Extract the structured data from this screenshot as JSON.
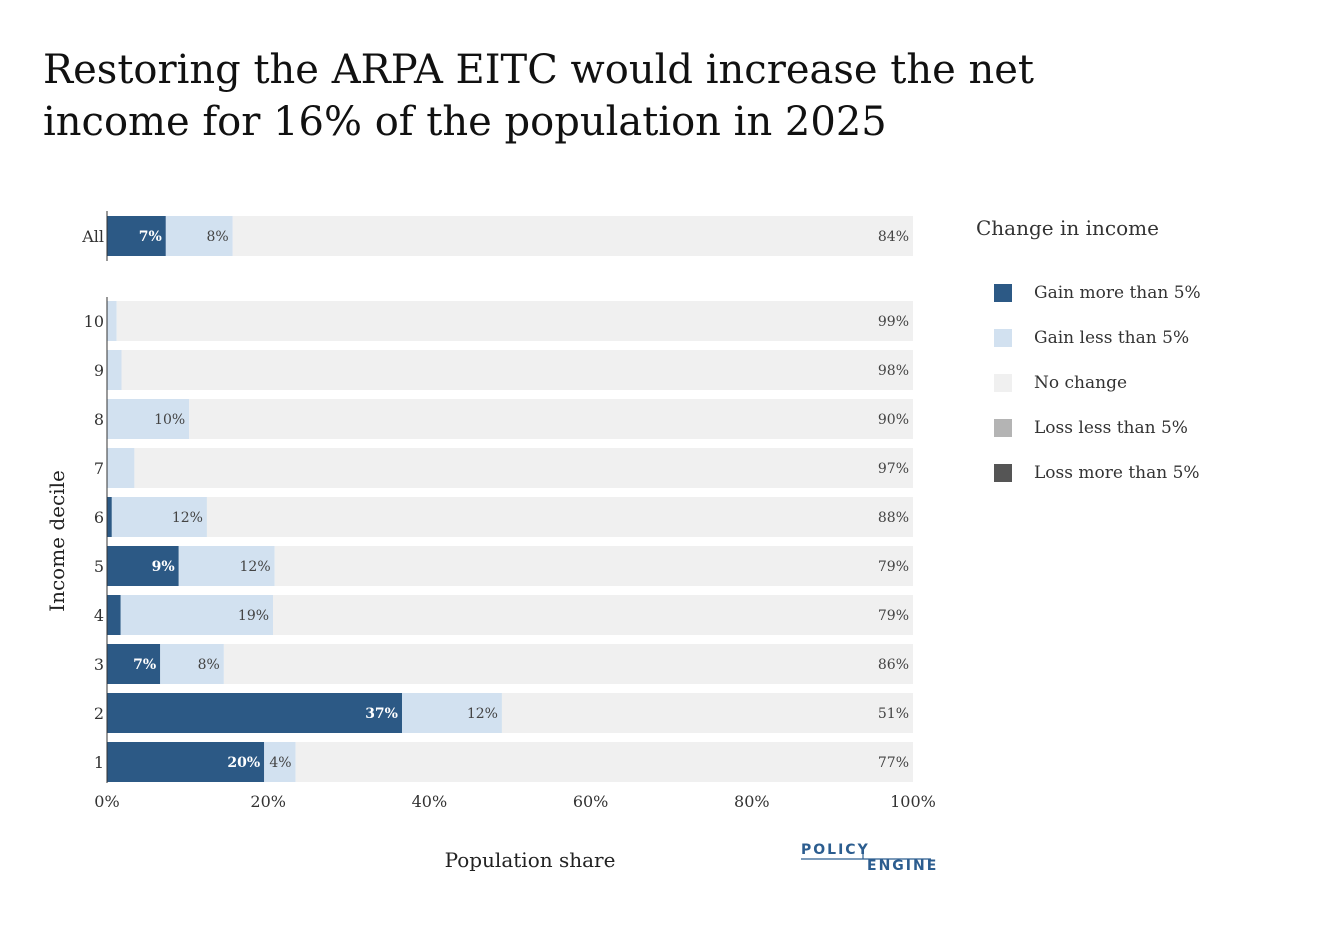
{
  "title_lines": [
    "Restoring the ARPA EITC would increase the net",
    "income for 16% of the population in 2025"
  ],
  "logo": {
    "line1": "POLICY",
    "line2": "ENGINE"
  },
  "legend": {
    "title": "Change in income",
    "items": [
      {
        "label": "Gain more than 5%",
        "color": "#2c5985"
      },
      {
        "label": "Gain less than 5%",
        "color": "#d2e1f0"
      },
      {
        "label": "No change",
        "color": "#f0f0f0"
      },
      {
        "label": "Loss less than 5%",
        "color": "#b4b4b4"
      },
      {
        "label": "Loss more than 5%",
        "color": "#555555"
      }
    ]
  },
  "chart_data": {
    "type": "bar",
    "orientation": "horizontal",
    "stacked": true,
    "xlabel": "Population share",
    "ylabel": "Income decile",
    "xlim": [
      0,
      100
    ],
    "x_ticks": [
      "0%",
      "20%",
      "40%",
      "60%",
      "80%",
      "100%"
    ],
    "categories": [
      "All",
      "10",
      "9",
      "8",
      "7",
      "6",
      "5",
      "4",
      "3",
      "2",
      "1"
    ],
    "series": [
      {
        "name": "Gain more than 5%",
        "color": "#2c5985",
        "values": [
          7.3,
          0,
          0,
          0,
          0,
          0.6,
          8.9,
          1.7,
          6.6,
          36.6,
          19.5
        ],
        "labels": [
          "7%",
          "",
          "",
          "",
          "",
          "",
          "9%",
          "",
          "7%",
          "37%",
          "20%"
        ]
      },
      {
        "name": "Gain less than 5%",
        "color": "#d2e1f0",
        "values": [
          8.3,
          1.2,
          1.8,
          10.2,
          3.4,
          11.8,
          11.9,
          18.9,
          7.9,
          12.4,
          3.9
        ],
        "labels": [
          "8%",
          "",
          "",
          "10%",
          "",
          "12%",
          "12%",
          "19%",
          "8%",
          "12%",
          "4%"
        ]
      },
      {
        "name": "No change",
        "color": "#f0f0f0",
        "values": [
          84.4,
          98.8,
          98.2,
          89.8,
          96.6,
          87.6,
          79.2,
          79.4,
          85.5,
          51.0,
          76.6
        ],
        "labels": [
          "84%",
          "99%",
          "98%",
          "90%",
          "97%",
          "88%",
          "79%",
          "79%",
          "86%",
          "51%",
          "77%"
        ]
      }
    ]
  }
}
